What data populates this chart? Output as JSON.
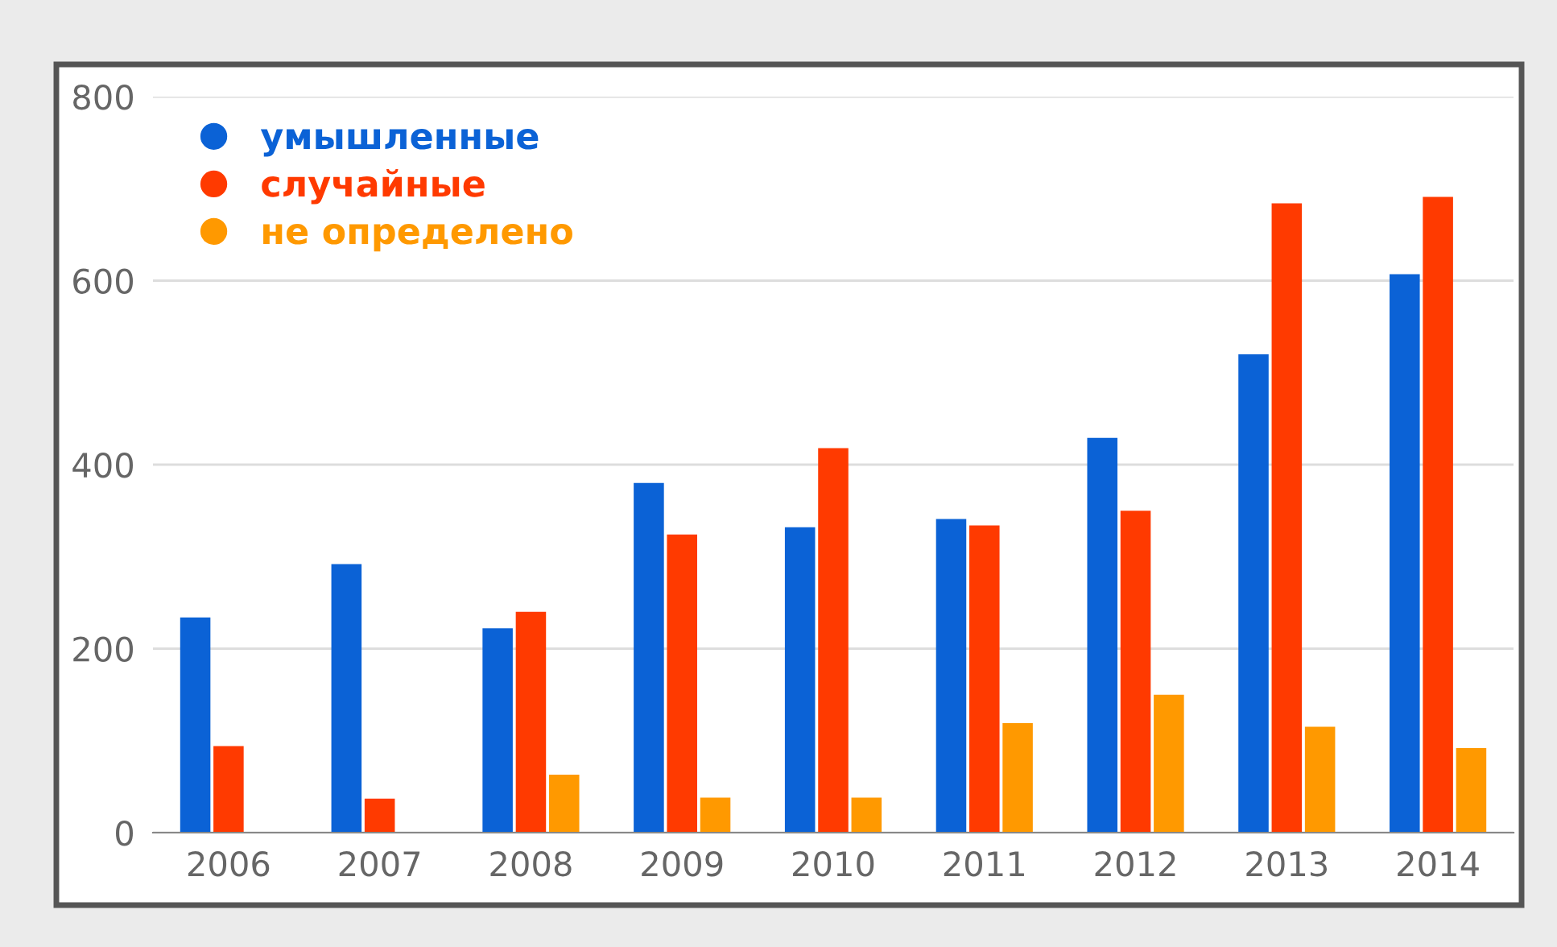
{
  "chart_data": {
    "type": "bar",
    "categories": [
      "2006",
      "2007",
      "2008",
      "2009",
      "2010",
      "2011",
      "2012",
      "2013",
      "2014"
    ],
    "series": [
      {
        "name": "умышленные",
        "color": "#0b62d6",
        "values": [
          234,
          292,
          222,
          380,
          332,
          341,
          429,
          520,
          607
        ]
      },
      {
        "name": "случайные",
        "color": "#ff3a00",
        "values": [
          94,
          37,
          240,
          324,
          418,
          334,
          350,
          684,
          691
        ]
      },
      {
        "name": "не определено",
        "color": "#ff9900",
        "values": [
          null,
          null,
          63,
          38,
          38,
          119,
          150,
          115,
          92
        ]
      }
    ],
    "ylim": [
      0,
      800
    ],
    "yticks": [
      0,
      200,
      400,
      600,
      800
    ],
    "grid": "y",
    "legend": "top left"
  }
}
